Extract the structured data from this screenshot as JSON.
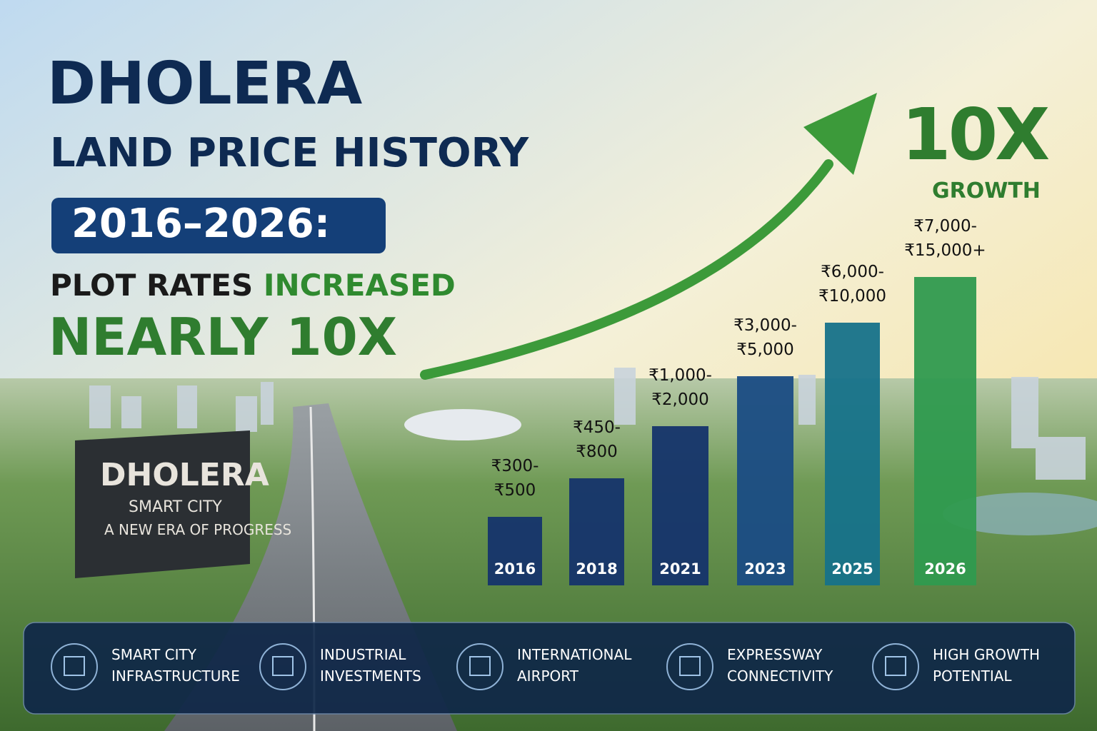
{
  "header": {
    "title": "DHOLERA",
    "subtitle": "LAND PRICE HISTORY",
    "period": "2016–2026:",
    "claim_part1": "PLOT RATES",
    "claim_part2": "INCREASED",
    "claim_line2": "NEARLY 10X"
  },
  "growth_badge": {
    "big": "10X",
    "small": "GROWTH"
  },
  "sign": {
    "title": "DHOLERA",
    "line1": "SMART CITY",
    "line2": "A NEW ERA OF PROGRESS"
  },
  "chart": {
    "bars": [
      {
        "year": "2016",
        "price_lines": [
          "₹300-",
          "₹500"
        ]
      },
      {
        "year": "2018",
        "price_lines": [
          "₹450-",
          "₹800"
        ]
      },
      {
        "year": "2021",
        "price_lines": [
          "₹1,000-",
          "₹2,000"
        ]
      },
      {
        "year": "2023",
        "price_lines": [
          "₹3,000-",
          "₹5,000"
        ]
      },
      {
        "year": "2025",
        "price_lines": [
          "₹6,000-",
          "₹10,000"
        ]
      },
      {
        "year": "2026",
        "price_lines": [
          "₹7,000-",
          "₹15,000+"
        ]
      }
    ]
  },
  "features": [
    {
      "line1": "SMART CITY",
      "line2": "INFRASTRUCTURE"
    },
    {
      "line1": "INDUSTRIAL",
      "line2": "INVESTMENTS"
    },
    {
      "line1": "INTERNATIONAL",
      "line2": "AIRPORT"
    },
    {
      "line1": "EXPRESSWAY",
      "line2": "CONNECTIVITY"
    },
    {
      "line1": "HIGH GROWTH",
      "line2": "POTENTIAL"
    }
  ]
}
